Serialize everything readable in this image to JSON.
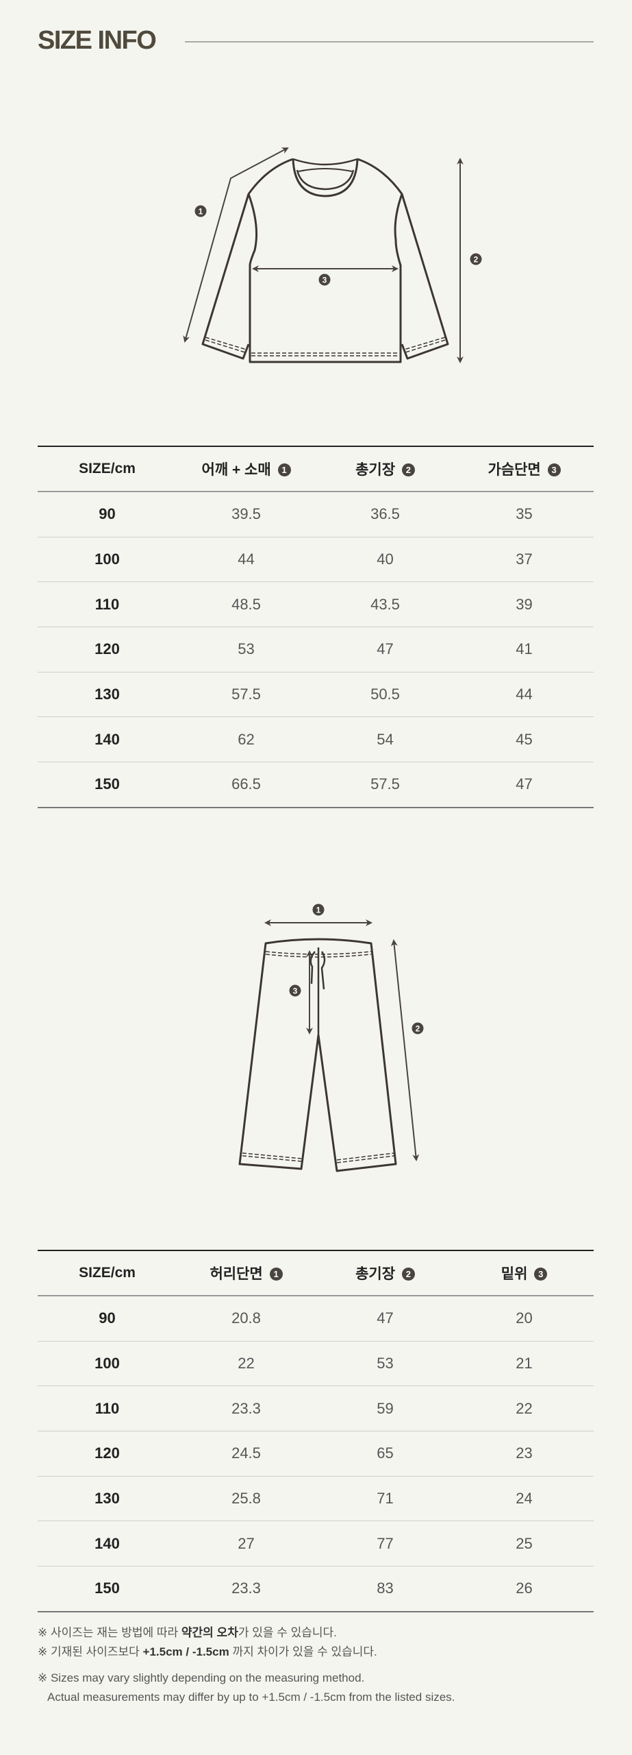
{
  "header": {
    "title": "SIZE INFO"
  },
  "colors": {
    "background": "#f5f5f0",
    "title": "#4f4a3c",
    "line_art": "#3d3733",
    "marker": "#4a4440"
  },
  "top": {
    "markers": [
      "1",
      "2",
      "3"
    ],
    "columns": [
      "SIZE/cm",
      "어깨 + 소매",
      "총기장",
      "가슴단면"
    ],
    "column_markers": [
      "",
      "1",
      "2",
      "3"
    ],
    "rows": [
      [
        "90",
        "39.5",
        "36.5",
        "35"
      ],
      [
        "100",
        "44",
        "40",
        "37"
      ],
      [
        "110",
        "48.5",
        "43.5",
        "39"
      ],
      [
        "120",
        "53",
        "47",
        "41"
      ],
      [
        "130",
        "57.5",
        "50.5",
        "44"
      ],
      [
        "140",
        "62",
        "54",
        "45"
      ],
      [
        "150",
        "66.5",
        "57.5",
        "47"
      ]
    ]
  },
  "bottom": {
    "markers": [
      "1",
      "2",
      "3"
    ],
    "columns": [
      "SIZE/cm",
      "허리단면",
      "총기장",
      "밑위"
    ],
    "column_markers": [
      "",
      "1",
      "2",
      "3"
    ],
    "rows": [
      [
        "90",
        "20.8",
        "47",
        "20"
      ],
      [
        "100",
        "22",
        "53",
        "21"
      ],
      [
        "110",
        "23.3",
        "59",
        "22"
      ],
      [
        "120",
        "24.5",
        "65",
        "23"
      ],
      [
        "130",
        "25.8",
        "71",
        "24"
      ],
      [
        "140",
        "27",
        "77",
        "25"
      ],
      [
        "150",
        "23.3",
        "83",
        "26"
      ]
    ]
  },
  "notes": {
    "n1_a": "※ 사이즈는 재는 방법에 따라 ",
    "n1_b": "약간의 오차",
    "n1_c": "가 있을 수 있습니다.",
    "n2_a": "※ 기재된 사이즈보다 ",
    "n2_b": "+1.5cm / -1.5cm",
    "n2_c": " 까지 차이가 있을 수 있습니다.",
    "n3": "※ Sizes may vary slightly depending on the measuring method.",
    "n4": "Actual measurements may differ by up to +1.5cm / -1.5cm from the listed sizes."
  }
}
